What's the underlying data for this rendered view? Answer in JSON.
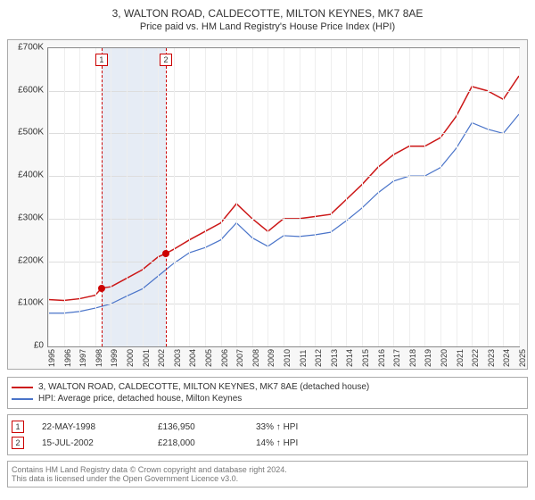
{
  "title": "3, WALTON ROAD, CALDECOTTE, MILTON KEYNES, MK7 8AE",
  "subtitle": "Price paid vs. HM Land Registry's House Price Index (HPI)",
  "chart": {
    "type": "line",
    "background_color": "#ffffff",
    "frame_color": "#888888",
    "grid_color": "#dddddd",
    "xlim": [
      1995,
      2025
    ],
    "ylim": [
      0,
      700000
    ],
    "ytick_step": 100000,
    "ytick_labels": [
      "£0",
      "£100K",
      "£200K",
      "£300K",
      "£400K",
      "£500K",
      "£600K",
      "£700K"
    ],
    "xticks": [
      1995,
      1996,
      1997,
      1998,
      1999,
      2000,
      2001,
      2002,
      2003,
      2004,
      2005,
      2006,
      2007,
      2008,
      2009,
      2010,
      2011,
      2012,
      2013,
      2014,
      2015,
      2016,
      2017,
      2018,
      2019,
      2020,
      2021,
      2022,
      2023,
      2024,
      2025
    ],
    "band": {
      "from": 1998.4,
      "to": 2002.5,
      "color": "#e6ecf5"
    },
    "markers": [
      {
        "num": "1",
        "x": 1998.4,
        "y": 136950
      },
      {
        "num": "2",
        "x": 2002.5,
        "y": 218000
      }
    ],
    "series": [
      {
        "name": "price_paid",
        "color": "#cc1818",
        "width": 1.5,
        "points": [
          [
            1995,
            110000
          ],
          [
            1996,
            108000
          ],
          [
            1997,
            112000
          ],
          [
            1998,
            120000
          ],
          [
            1998.4,
            136950
          ],
          [
            1999,
            140000
          ],
          [
            2000,
            160000
          ],
          [
            2001,
            180000
          ],
          [
            2002,
            210000
          ],
          [
            2002.5,
            218000
          ],
          [
            2003,
            228000
          ],
          [
            2004,
            250000
          ],
          [
            2005,
            270000
          ],
          [
            2006,
            290000
          ],
          [
            2007,
            335000
          ],
          [
            2008,
            300000
          ],
          [
            2009,
            270000
          ],
          [
            2010,
            300000
          ],
          [
            2011,
            300000
          ],
          [
            2012,
            305000
          ],
          [
            2013,
            310000
          ],
          [
            2014,
            345000
          ],
          [
            2015,
            380000
          ],
          [
            2016,
            420000
          ],
          [
            2017,
            450000
          ],
          [
            2018,
            470000
          ],
          [
            2019,
            470000
          ],
          [
            2020,
            490000
          ],
          [
            2021,
            540000
          ],
          [
            2022,
            610000
          ],
          [
            2023,
            600000
          ],
          [
            2024,
            580000
          ],
          [
            2025,
            635000
          ]
        ]
      },
      {
        "name": "hpi",
        "color": "#4a74c9",
        "width": 1.2,
        "points": [
          [
            1995,
            78000
          ],
          [
            1996,
            78000
          ],
          [
            1997,
            82000
          ],
          [
            1998,
            90000
          ],
          [
            1999,
            100000
          ],
          [
            2000,
            118000
          ],
          [
            2001,
            135000
          ],
          [
            2002,
            165000
          ],
          [
            2003,
            195000
          ],
          [
            2004,
            220000
          ],
          [
            2005,
            232000
          ],
          [
            2006,
            250000
          ],
          [
            2007,
            290000
          ],
          [
            2008,
            255000
          ],
          [
            2009,
            235000
          ],
          [
            2010,
            260000
          ],
          [
            2011,
            258000
          ],
          [
            2012,
            262000
          ],
          [
            2013,
            268000
          ],
          [
            2014,
            295000
          ],
          [
            2015,
            325000
          ],
          [
            2016,
            360000
          ],
          [
            2017,
            388000
          ],
          [
            2018,
            400000
          ],
          [
            2019,
            400000
          ],
          [
            2020,
            420000
          ],
          [
            2021,
            465000
          ],
          [
            2022,
            525000
          ],
          [
            2023,
            510000
          ],
          [
            2024,
            500000
          ],
          [
            2025,
            545000
          ]
        ]
      }
    ]
  },
  "legend": {
    "items": [
      {
        "color": "#cc1818",
        "label": "3, WALTON ROAD, CALDECOTTE, MILTON KEYNES, MK7 8AE (detached house)"
      },
      {
        "color": "#4a74c9",
        "label": "HPI: Average price, detached house, Milton Keynes"
      }
    ]
  },
  "marker_rows": [
    {
      "num": "1",
      "date": "22-MAY-1998",
      "price": "£136,950",
      "pct": "33% ↑ HPI"
    },
    {
      "num": "2",
      "date": "15-JUL-2002",
      "price": "£218,000",
      "pct": "14% ↑ HPI"
    }
  ],
  "footer": {
    "l1": "Contains HM Land Registry data © Crown copyright and database right 2024.",
    "l2": "This data is licensed under the Open Government Licence v3.0."
  }
}
